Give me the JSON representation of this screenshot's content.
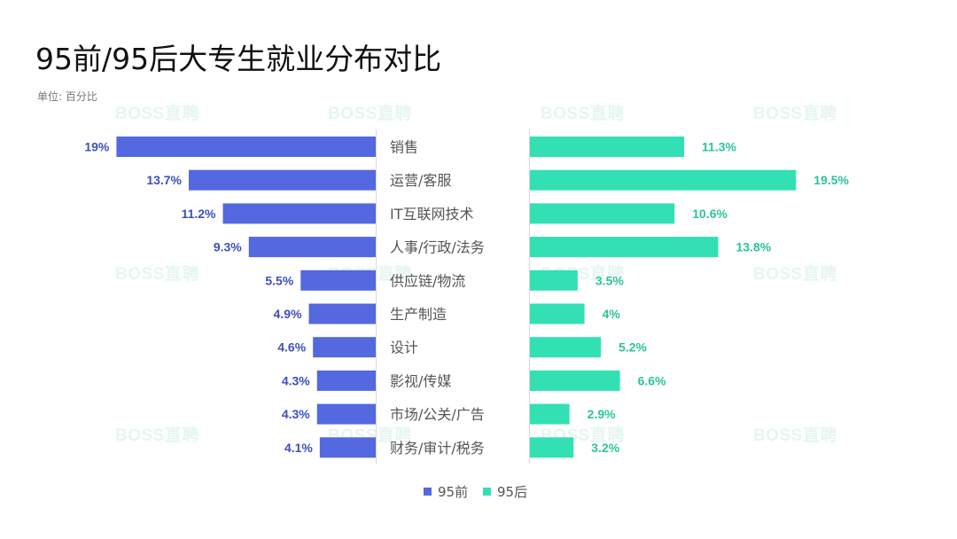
{
  "title": "95前/95后大专生就业分布对比",
  "unit_label": "单位: 百分比",
  "watermark": "BOSS直聘",
  "colors": {
    "pre95": "#5468e0",
    "post95": "#33e0b3",
    "label_pre95": "#3d4fbf",
    "label_post95": "#2ec39a"
  },
  "chart_data": {
    "type": "bar",
    "orientation": "horizontal-butterfly",
    "categories": [
      "销售",
      "运营/客服",
      "IT互联网技术",
      "人事/行政/法务",
      "供应链/物流",
      "生产制造",
      "设计",
      "影视/传媒",
      "市场/公关/广告",
      "财务/审计/税务"
    ],
    "series": [
      {
        "name": "95前",
        "values": [
          19,
          13.7,
          11.2,
          9.3,
          5.5,
          4.9,
          4.6,
          4.3,
          4.3,
          4.1
        ],
        "labels": [
          "19%",
          "13.7%",
          "11.2%",
          "9.3%",
          "5.5%",
          "4.9%",
          "4.6%",
          "4.3%",
          "4.3%",
          "4.1%"
        ]
      },
      {
        "name": "95后",
        "values": [
          11.3,
          19.5,
          10.6,
          13.8,
          3.5,
          4,
          5.2,
          6.6,
          2.9,
          3.2
        ],
        "labels": [
          "11.3%",
          "19.5%",
          "10.6%",
          "13.8%",
          "3.5%",
          "4%",
          "5.2%",
          "6.6%",
          "2.9%",
          "3.2%"
        ]
      }
    ],
    "legend": "bottom-center"
  }
}
